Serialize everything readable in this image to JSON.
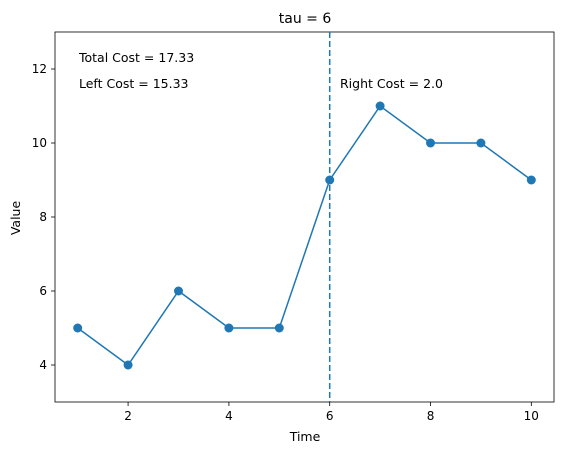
{
  "chart_data": {
    "type": "line",
    "title": "tau = 6",
    "xlabel": "Time",
    "ylabel": "Value",
    "x": [
      1,
      2,
      3,
      4,
      5,
      6,
      7,
      8,
      9,
      10
    ],
    "series": [
      {
        "values": [
          5,
          4,
          6,
          5,
          5,
          9,
          11,
          10,
          10,
          9
        ],
        "color": "#1f77b4"
      }
    ],
    "xlim": [
      0.55,
      10.45
    ],
    "ylim": [
      3,
      13
    ],
    "xticks": [
      2,
      4,
      6,
      8,
      10
    ],
    "yticks": [
      4,
      6,
      8,
      10,
      12
    ],
    "changepoint": {
      "x": 6,
      "style": "dashed",
      "color": "#1f77b4"
    },
    "annotations": {
      "total_cost": "Total Cost = 17.33",
      "left_cost": "Left Cost = 15.33",
      "right_cost": "Right Cost = 2.0"
    },
    "grid": false,
    "legend": "none"
  }
}
